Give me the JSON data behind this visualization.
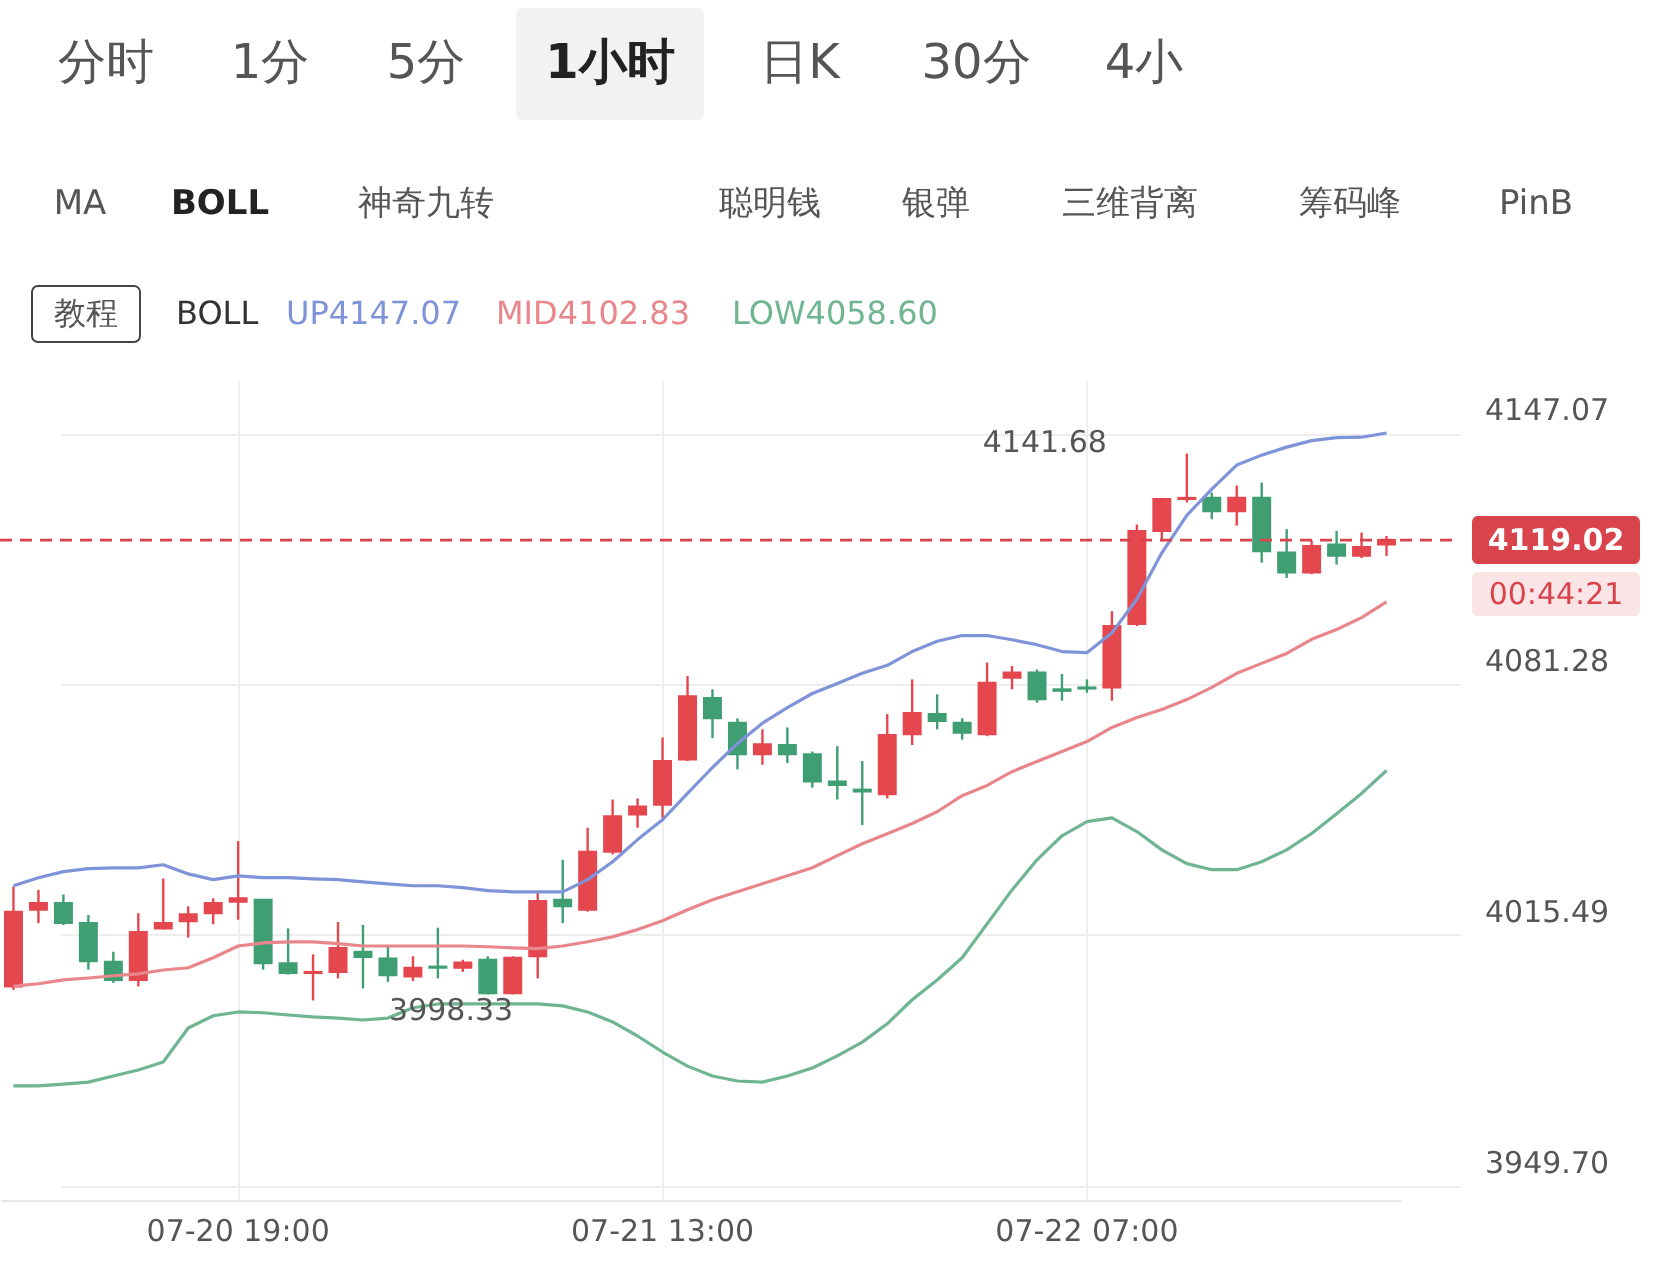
{
  "chart_data": {
    "type": "candlestick",
    "title": "BOLL",
    "categories": [
      null,
      null,
      null,
      null,
      null,
      null,
      null,
      null,
      null,
      "07-20 19:00",
      null,
      null,
      null,
      null,
      null,
      null,
      null,
      null,
      null,
      null,
      null,
      null,
      null,
      null,
      null,
      null,
      "07-21 13:00",
      null,
      null,
      null,
      null,
      null,
      null,
      null,
      null,
      null,
      null,
      null,
      null,
      null,
      null,
      null,
      null,
      "07-22 07:00",
      null,
      null,
      null,
      null,
      null,
      null,
      null,
      null,
      null,
      null,
      null,
      null
    ],
    "ohlc": [
      [
        4002.0,
        4028.2,
        4001.1,
        4021.6
      ],
      [
        4022.1,
        4027.3,
        4018.6,
        4023.9
      ],
      [
        4023.9,
        4026.1,
        4018.1,
        4018.6
      ],
      [
        4018.6,
        4020.7,
        4006.4,
        4008.6
      ],
      [
        4008.5,
        4011.1,
        4002.9,
        4003.7
      ],
      [
        4003.7,
        4021.2,
        4002.0,
        4016.3
      ],
      [
        4017.2,
        4030.3,
        4016.9,
        4018.6
      ],
      [
        4019.1,
        4023.0,
        4014.8,
        4020.9
      ],
      [
        4021.2,
        4025.1,
        4018.3,
        4023.9
      ],
      [
        4024.2,
        4040.1,
        4019.5,
        4025.1
      ],
      [
        4024.7,
        4024.7,
        4006.4,
        4008.1
      ],
      [
        4008.1,
        4017.2,
        4005.1,
        4005.5
      ],
      [
        4005.5,
        4010.4,
        3998.33,
        4005.8
      ],
      [
        4005.8,
        4018.9,
        4004.1,
        4012.1
      ],
      [
        4011.1,
        4018.1,
        4001.5,
        4009.7
      ],
      [
        4009.3,
        4012.5,
        4003.2,
        4004.9
      ],
      [
        4004.6,
        4009.9,
        4003.4,
        4006.9
      ],
      [
        4007.2,
        4017.4,
        4004.1,
        4006.9
      ],
      [
        4006.9,
        4009.0,
        4005.8,
        4008.3
      ],
      [
        4009.0,
        4009.9,
        3999.9,
        4000.2
      ],
      [
        4000.2,
        4009.9,
        3999.9,
        4009.5
      ],
      [
        4009.9,
        4026.5,
        4004.1,
        4024.4
      ],
      [
        4024.7,
        4035.2,
        4018.6,
        4023.0
      ],
      [
        4022.1,
        4043.6,
        4021.6,
        4037.3
      ],
      [
        4037.3,
        4051.0,
        4036.6,
        4046.6
      ],
      [
        4047.1,
        4051.3,
        4043.6,
        4049.2
      ],
      [
        4049.6,
        4067.3,
        4046.1,
        4061.1
      ],
      [
        4061.5,
        4083.4,
        4061.1,
        4078.1
      ],
      [
        4077.6,
        4079.9,
        4067.1,
        4072.3
      ],
      [
        4071.1,
        4072.3,
        4058.9,
        4062.9
      ],
      [
        4062.9,
        4069.4,
        4060.1,
        4065.5
      ],
      [
        4065.3,
        4069.9,
        4060.6,
        4062.9
      ],
      [
        4062.9,
        4063.6,
        4054.1,
        4055.7
      ],
      [
        4055.7,
        4065.0,
        4051.0,
        4054.8
      ],
      [
        4053.6,
        4061.1,
        4044.3,
        4053.1
      ],
      [
        4052.4,
        4073.4,
        4051.3,
        4067.9
      ],
      [
        4068.1,
        4082.5,
        4065.3,
        4073.7
      ],
      [
        4073.4,
        4078.6,
        4069.4,
        4071.6
      ],
      [
        4071.1,
        4072.3,
        4066.7,
        4068.5
      ],
      [
        4068.1,
        4086.9,
        4067.6,
        4081.6
      ],
      [
        4082.9,
        4086.0,
        4079.9,
        4084.3
      ],
      [
        4084.3,
        4085.1,
        4076.4,
        4077.3
      ],
      [
        4079.9,
        4083.9,
        4076.9,
        4079.5
      ],
      [
        4080.4,
        4082.5,
        4079.0,
        4080.1
      ],
      [
        4080.4,
        4100.4,
        4076.9,
        4096.5
      ],
      [
        4097.0,
        4123.1,
        4096.5,
        4121.4
      ],
      [
        4121.4,
        4130.1,
        4118.7,
        4129.8
      ],
      [
        4129.8,
        4141.68,
        4128.9,
        4130.1
      ],
      [
        4130.1,
        4131.5,
        4124.5,
        4126.6
      ],
      [
        4126.6,
        4133.3,
        4122.8,
        4130.1
      ],
      [
        4130.1,
        4134.1,
        4113.1,
        4116.1
      ],
      [
        4115.8,
        4121.9,
        4109.1,
        4110.5
      ],
      [
        4110.5,
        4118.9,
        4110.1,
        4117.5
      ],
      [
        4117.9,
        4121.4,
        4112.6,
        4114.9
      ],
      [
        4114.9,
        4121.0,
        4114.3,
        4117.2
      ],
      [
        4117.9,
        4120.1,
        4114.9,
        4119.02
      ]
    ],
    "series": [
      {
        "name": "UP4147.07",
        "type": "line",
        "color": "#7f93d8",
        "values": [
          4028.4,
          4030.5,
          4032.1,
          4032.9,
          4033.1,
          4033.1,
          4033.9,
          4031.5,
          4030.0,
          4031.0,
          4030.5,
          4030.5,
          4030.2,
          4030.0,
          4029.4,
          4028.9,
          4028.4,
          4028.4,
          4027.9,
          4027.1,
          4026.8,
          4026.8,
          4026.8,
          4030.0,
          4034.7,
          4040.5,
          4045.7,
          4052.6,
          4059.4,
          4065.7,
          4071.0,
          4075.1,
          4078.8,
          4081.4,
          4084.1,
          4086.2,
          4089.8,
          4092.5,
          4094.0,
          4094.0,
          4092.9,
          4091.6,
          4089.8,
          4089.5,
          4094.7,
          4103.5,
          4115.7,
          4125.5,
          4132.4,
          4138.7,
          4141.3,
          4143.4,
          4145.1,
          4145.9,
          4146.0,
          4147.1
        ]
      },
      {
        "name": "MID4102.83",
        "type": "line",
        "color": "#e8868b",
        "values": [
          4002.1,
          4002.7,
          4003.7,
          4004.2,
          4004.8,
          4005.3,
          4006.3,
          4006.9,
          4009.5,
          4012.6,
          4013.4,
          4013.7,
          4013.7,
          4013.2,
          4012.6,
          4012.6,
          4012.6,
          4012.6,
          4012.6,
          4012.4,
          4012.1,
          4011.9,
          4012.6,
          4013.7,
          4015.0,
          4016.9,
          4019.2,
          4022.1,
          4024.7,
          4026.8,
          4028.9,
          4031.0,
          4033.1,
          4036.3,
          4039.4,
          4042.0,
          4044.7,
          4047.8,
          4052.0,
          4054.7,
          4058.3,
          4061.0,
          4063.6,
          4066.2,
          4069.9,
          4072.5,
          4074.6,
          4077.2,
          4080.4,
          4084.1,
          4086.7,
          4089.3,
          4093.0,
          4095.6,
          4098.7,
          4102.8
        ]
      },
      {
        "name": "LOW4058.60",
        "type": "line",
        "color": "#6fb592",
        "values": [
          3975.9,
          3975.9,
          3976.4,
          3976.9,
          3978.5,
          3980.1,
          3982.2,
          3991.1,
          3994.3,
          3995.3,
          3995.1,
          3994.5,
          3994.0,
          3993.7,
          3993.2,
          3993.7,
          3996.4,
          3997.4,
          3997.4,
          3997.4,
          3997.4,
          3997.4,
          3996.9,
          3995.3,
          3992.7,
          3989.0,
          3984.8,
          3981.1,
          3978.5,
          3977.2,
          3976.9,
          3978.5,
          3980.6,
          3983.8,
          3987.4,
          3992.2,
          3998.5,
          4003.7,
          4009.5,
          4018.4,
          4027.3,
          4035.2,
          4041.5,
          4045.2,
          4046.2,
          4042.6,
          4037.8,
          4034.2,
          4032.6,
          4032.6,
          4034.7,
          4037.8,
          4042.1,
          4047.3,
          4052.6,
          4058.6
        ]
      }
    ],
    "ylim": [
      3946,
      4161
    ],
    "yticks": [
      {
        "value": 3949.7,
        "label": "3949.70"
      },
      4015.49,
      4081.28,
      4147.07
    ],
    "ref_lines": [
      {
        "axis": "y",
        "value": 4119.02,
        "label": "4119.02",
        "color": "#d9434c",
        "line_style": "dashed"
      }
    ],
    "annotations": [
      "分时",
      "1分",
      "5分",
      "1小时",
      "日K",
      "30分",
      "4小",
      "MA",
      "BOLL",
      "神奇九转",
      "聪明钱",
      "银弹",
      "三维背离",
      "筹码峰",
      "PinB",
      "教程",
      "00:44:21",
      "4141.68",
      "3998.33"
    ],
    "grid": true,
    "legend": "top",
    "marker": "none",
    "line_style": "solid"
  }
}
